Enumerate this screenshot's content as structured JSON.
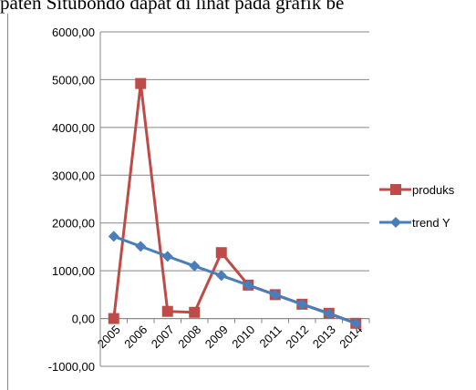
{
  "header": {
    "text": "paten Situbondo dapat di lihat pada grafik be"
  },
  "chart_data": {
    "type": "line",
    "categories": [
      "2005",
      "2006",
      "2007",
      "2008",
      "2009",
      "2010",
      "2011",
      "2012",
      "2013",
      "2014"
    ],
    "series": [
      {
        "name": "produksi",
        "color": "#be4b48",
        "marker": "square",
        "values": [
          0,
          4920,
          150,
          130,
          1380,
          700,
          500,
          300,
          110,
          -100
        ]
      },
      {
        "name": "trend Y",
        "color": "#4a7ebb",
        "marker": "diamond",
        "values": [
          1720,
          1510,
          1300,
          1100,
          900,
          700,
          500,
          300,
          100,
          -100
        ]
      }
    ],
    "yticks": [
      "6000,00",
      "5000,00",
      "4000,00",
      "3000,00",
      "2000,00",
      "1000,00",
      "0,00",
      "-1000,00"
    ],
    "ylim": [
      -1000,
      6000
    ],
    "grid": true,
    "legend_placement": "right",
    "legend": [
      {
        "label": "produks"
      },
      {
        "label": "trend Y"
      }
    ]
  }
}
